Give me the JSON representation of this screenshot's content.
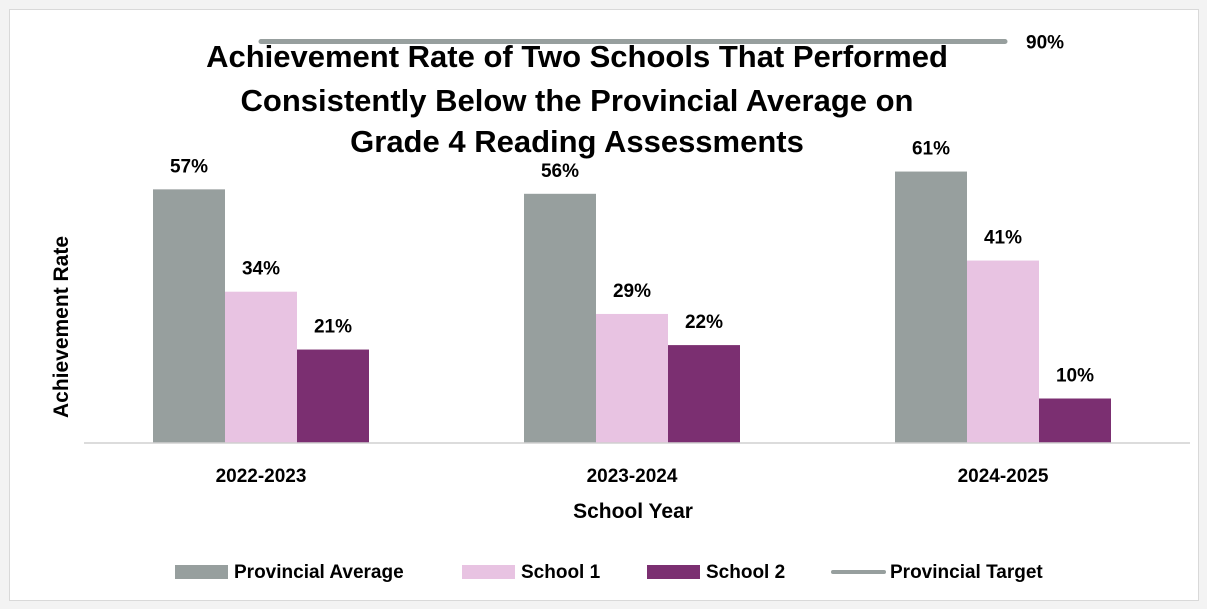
{
  "chart_data": {
    "type": "bar",
    "title": [
      "Achievement Rate of Two Schools That Performed",
      "Consistently Below the Provincial Average on",
      "Grade 4 Reading Assessments"
    ],
    "xlabel": "School Year",
    "ylabel": "Achievement Rate",
    "categories": [
      "2022-2023",
      "2023-2024",
      "2024-2025"
    ],
    "series": [
      {
        "name": "Provincial Average",
        "values": [
          57,
          56,
          61
        ],
        "labels": [
          "57%",
          "56%",
          "61%"
        ],
        "color": "#979f9e"
      },
      {
        "name": "School 1",
        "values": [
          34,
          29,
          41
        ],
        "labels": [
          "34%",
          "29%",
          "41%"
        ],
        "color": "#e8c3e2"
      },
      {
        "name": "School 2",
        "values": [
          21,
          22,
          10
        ],
        "labels": [
          "21%",
          "22%",
          "10%"
        ],
        "color": "#7b2f71"
      }
    ],
    "target": {
      "name": "Provincial Target",
      "value": 90,
      "label": "90%",
      "color": "#979f9e"
    },
    "ylim": [
      0,
      100
    ],
    "grid": false,
    "legend_position": "bottom"
  }
}
